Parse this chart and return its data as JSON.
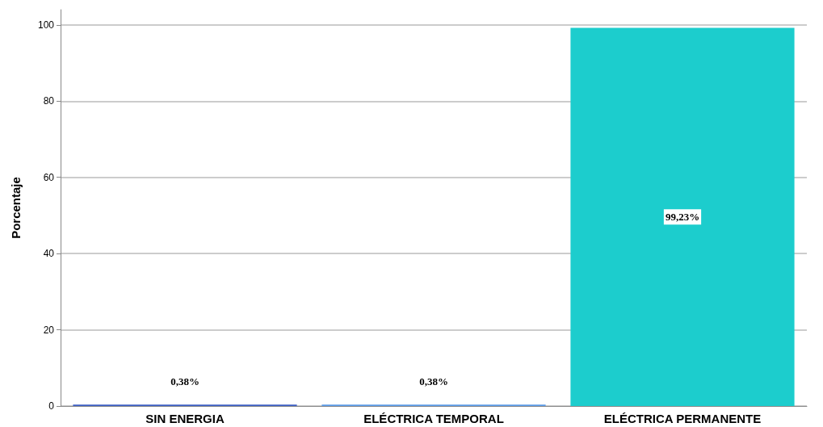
{
  "chart_data": {
    "type": "bar",
    "ylabel": "Porcentaje",
    "categories": [
      "SIN ENERGIA",
      "ELÉCTRICA TEMPORAL",
      "ELÉCTRICA PERMANENTE"
    ],
    "values": [
      0.38,
      0.38,
      99.23
    ],
    "value_labels": [
      "0,38%",
      "0,38%",
      "99,23%"
    ],
    "colors": [
      "#3d5fc4",
      "#5b9be8",
      "#1ccdcd"
    ],
    "ylim": [
      0,
      104
    ],
    "yticks": [
      0,
      20,
      40,
      60,
      80,
      100
    ],
    "grid": "y"
  }
}
